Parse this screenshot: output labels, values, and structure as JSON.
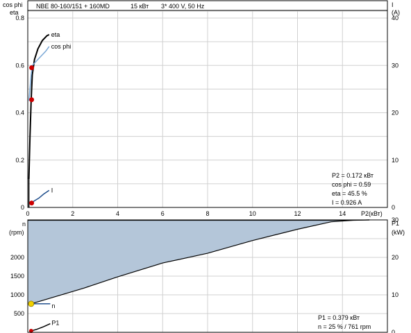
{
  "header": {
    "title": "NBE 80-160/151 + 160MD",
    "power": "15 кВт",
    "supply": "3* 400 V, 50 Hz"
  },
  "chart_data": [
    {
      "type": "line",
      "id": "upper",
      "left_axis_labels": [
        "cos phi",
        "eta"
      ],
      "right_axis_labels": [
        "I",
        "(A)"
      ],
      "xlabel": "P2(кВт)",
      "xlim": [
        0,
        16
      ],
      "x_ticks": [
        0,
        2,
        4,
        6,
        8,
        10,
        12,
        14
      ],
      "ylim": [
        0,
        0.8
      ],
      "y_ticks": [
        0,
        0.2,
        0.4,
        0.6,
        0.8
      ],
      "y2lim": [
        0,
        40
      ],
      "y2_ticks": [
        0,
        10,
        20,
        30,
        40
      ],
      "grid": true,
      "series": [
        {
          "name": "eta",
          "color": "#000000",
          "axis": "left",
          "x": [
            0.05,
            0.1,
            0.15,
            0.2,
            0.3,
            0.45,
            0.65,
            0.85,
            0.95
          ],
          "y": [
            0.12,
            0.3,
            0.455,
            0.56,
            0.625,
            0.67,
            0.705,
            0.725,
            0.73
          ]
        },
        {
          "name": "cos phi",
          "color": "#7aa8d6",
          "axis": "left",
          "x": [
            0.05,
            0.15,
            0.2,
            0.4,
            0.6,
            0.8,
            0.95
          ],
          "y": [
            0.45,
            0.56,
            0.6,
            0.62,
            0.64,
            0.66,
            0.68
          ]
        },
        {
          "name": "I",
          "color": "#1f4e8c",
          "axis": "right",
          "x": [
            0.15,
            0.3,
            0.5,
            0.7,
            0.95
          ],
          "y": [
            0.926,
            1.4,
            2.0,
            2.8,
            3.6
          ]
        }
      ],
      "markers": [
        {
          "series": "eta",
          "x": 0.172,
          "y": 0.455,
          "color": "#cc0000"
        },
        {
          "series": "cos phi",
          "x": 0.172,
          "y": 0.59,
          "color": "#cc0000"
        },
        {
          "series": "I",
          "x": 0.172,
          "y": 0.926,
          "axis": "right",
          "color": "#cc0000"
        }
      ],
      "info_lines": [
        "P2  = 0.172 кВт",
        "cos phi = 0.59",
        "eta  = 45.5 %",
        "I   = 0.926 A"
      ]
    },
    {
      "type": "area",
      "id": "lower",
      "left_axis_labels": [
        "n",
        "(rpm)"
      ],
      "right_axis_labels": [
        "P1",
        "(kW)"
      ],
      "xlim": [
        0,
        16
      ],
      "ylim": [
        0,
        3000
      ],
      "y_ticks": [
        500,
        1000,
        1500,
        2000
      ],
      "y2lim": [
        0,
        30
      ],
      "y2_ticks": [
        0,
        10,
        20,
        30
      ],
      "grid": true,
      "fill_color": "#b4c6d9",
      "series": [
        {
          "name": "n",
          "axis": "left",
          "color": "#000000",
          "x": [
            0.15,
            2.5,
            4.0,
            6.0,
            8.0,
            10.0,
            12.0,
            13.5,
            14.5,
            15.2
          ],
          "y": [
            761,
            1180,
            1480,
            1850,
            2110,
            2450,
            2750,
            2950,
            2990,
            3000
          ]
        },
        {
          "name": "n_top",
          "axis": "left",
          "color": "#000000",
          "x": [
            0.0,
            5.0,
            10.0,
            14.0,
            15.2
          ],
          "y": [
            2990,
            2990,
            2990,
            2990,
            3000
          ]
        },
        {
          "name": "P1",
          "axis": "right",
          "color": "#000000",
          "x": [
            0.15,
            0.4,
            0.7,
            1.0
          ],
          "y": [
            0.379,
            0.8,
            1.5,
            2.3
          ]
        }
      ],
      "n_minimum_line": {
        "x": [
          0.15,
          1.0
        ],
        "y": [
          761,
          761
        ],
        "color": "#1f4e8c"
      },
      "markers": [
        {
          "series": "n",
          "x": 0.15,
          "y": 761,
          "color": "#f2d100"
        },
        {
          "series": "P1",
          "x": 0.15,
          "y": 0.379,
          "axis": "right",
          "color": "#cc0000"
        }
      ],
      "info_lines": [
        "P1  = 0.379 кВт",
        "n   = 25 % / 761 rpm"
      ]
    }
  ]
}
